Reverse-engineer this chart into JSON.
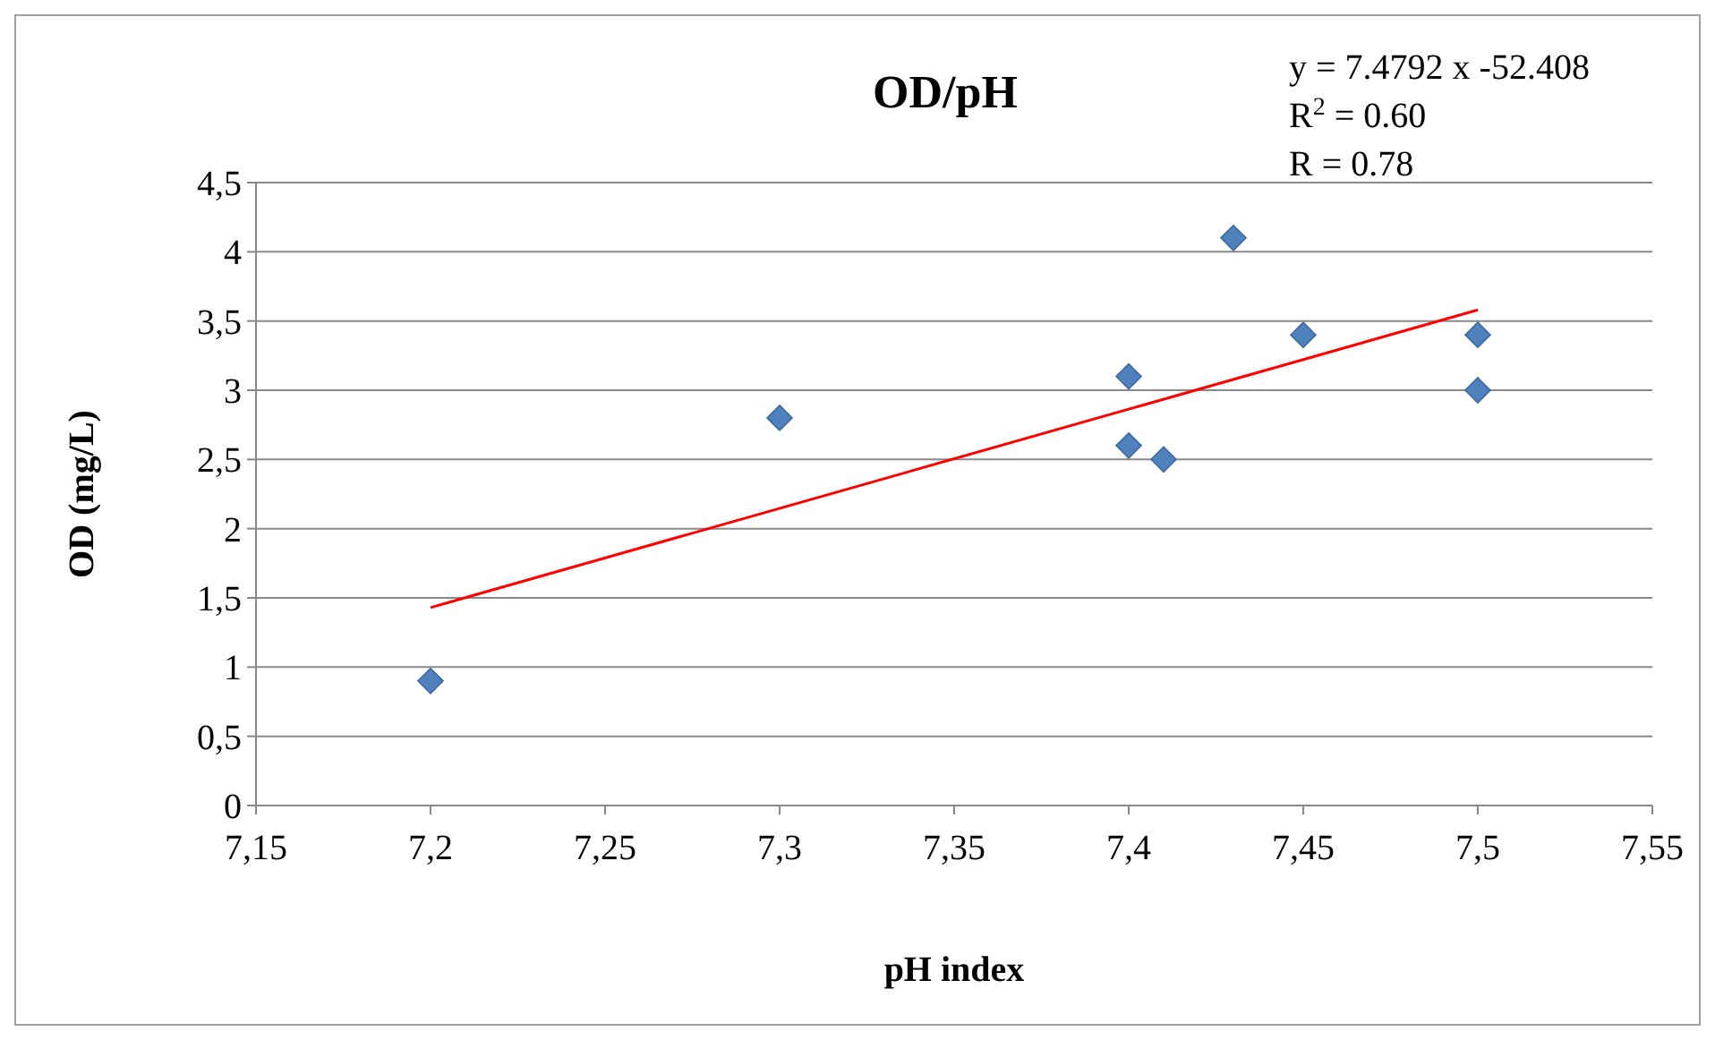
{
  "chart_data": {
    "type": "scatter",
    "title": "OD/pH",
    "xlabel": "pH index",
    "ylabel": "OD (mg/L)",
    "annotations": [
      "y = 7.4792 x -52.408",
      "R$^{2}$ = 0.60",
      "R = 0.78"
    ],
    "xlim": [
      7.15,
      7.55
    ],
    "xticks": [
      {
        "value": 7.15,
        "label": "7,15"
      },
      {
        "value": 7.2,
        "label": "7,2"
      },
      {
        "value": 7.25,
        "label": "7,25"
      },
      {
        "value": 7.3,
        "label": "7,3"
      },
      {
        "value": 7.35,
        "label": "7,35"
      },
      {
        "value": 7.4,
        "label": "7,4"
      },
      {
        "value": 7.45,
        "label": "7,45"
      },
      {
        "value": 7.5,
        "label": "7,5"
      },
      {
        "value": 7.55,
        "label": "7,55"
      }
    ],
    "ylim": [
      0,
      4.5
    ],
    "yticks": [
      0,
      {
        "value": 0.5,
        "label": "0,5"
      },
      1,
      {
        "value": 1.5,
        "label": "1,5"
      },
      2,
      {
        "value": 2.5,
        "label": "2,5"
      },
      3,
      {
        "value": 3.5,
        "label": "3,5"
      },
      4,
      {
        "value": 4.5,
        "label": "4,5"
      }
    ],
    "grid": "y",
    "marker": "diamond",
    "series": [
      {
        "type": "scatter",
        "color": "#4f81bd",
        "x": [
          7.2,
          7.3,
          7.4,
          7.4,
          7.41,
          7.43,
          7.45,
          7.5,
          7.5
        ],
        "values": [
          0.9,
          2.8,
          3.1,
          2.6,
          2.5,
          4.1,
          3.4,
          3.4,
          3.0
        ]
      },
      {
        "type": "line",
        "color": "#ff0000",
        "x": [
          7.2,
          7.5
        ],
        "values": [
          1.43,
          3.58
        ],
        "marker": "none",
        "line_style": "solid"
      }
    ]
  }
}
